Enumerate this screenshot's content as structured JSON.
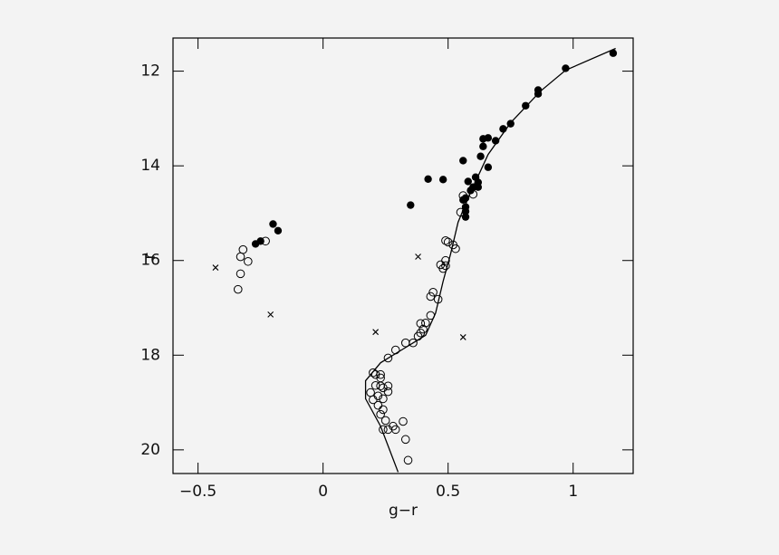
{
  "chart_data": {
    "type": "scatter",
    "x_label": "g−r",
    "y_label": "r",
    "xlim": [
      -0.6,
      1.24
    ],
    "ylim": [
      20.5,
      11.3
    ],
    "xticks": [
      {
        "value": -0.5,
        "label": "−0.5"
      },
      0,
      0.5,
      1
    ],
    "yticks": [
      12,
      14,
      16,
      18,
      20
    ],
    "series": [
      {
        "marker": "filled",
        "color": "#000000",
        "x": [
          1.16,
          0.97,
          0.86,
          0.86,
          0.81,
          0.75,
          0.72,
          0.69,
          0.66,
          0.64,
          0.64,
          0.63,
          0.66,
          0.56,
          0.61,
          0.58,
          0.62,
          0.6,
          0.62,
          0.59,
          0.42,
          0.48,
          0.57,
          0.56,
          0.57,
          0.57,
          0.57,
          0.35,
          -0.2,
          -0.18,
          -0.25,
          -0.27
        ],
        "values": [
          11.62,
          11.94,
          12.4,
          12.48,
          12.73,
          13.11,
          13.22,
          13.47,
          13.41,
          13.43,
          13.59,
          13.8,
          14.03,
          13.89,
          14.24,
          14.33,
          14.35,
          14.45,
          14.45,
          14.52,
          14.28,
          14.29,
          14.68,
          14.72,
          14.87,
          14.96,
          15.08,
          14.83,
          15.23,
          15.37,
          15.59,
          15.65
        ]
      },
      {
        "marker": "open",
        "color": "#000000",
        "x": [
          0.6,
          0.56,
          0.55,
          0.49,
          0.5,
          0.52,
          0.53,
          0.49,
          0.47,
          0.49,
          0.48,
          0.44,
          0.43,
          0.46,
          0.43,
          0.41,
          0.39,
          0.4,
          0.39,
          0.38,
          0.36,
          0.33,
          0.29,
          0.26,
          0.2,
          0.21,
          0.23,
          0.23,
          0.21,
          0.23,
          0.24,
          0.26,
          0.26,
          0.19,
          0.22,
          0.24,
          0.2,
          0.22,
          0.24,
          0.23,
          0.25,
          0.28,
          0.32,
          0.24,
          0.26,
          0.29,
          0.33,
          0.34,
          -0.23,
          -0.32,
          -0.33,
          -0.3,
          -0.33,
          -0.34
        ],
        "values": [
          14.6,
          14.63,
          14.98,
          15.58,
          15.61,
          15.67,
          15.75,
          16.0,
          16.09,
          16.11,
          16.17,
          16.67,
          16.76,
          16.82,
          17.16,
          17.32,
          17.33,
          17.45,
          17.53,
          17.6,
          17.74,
          17.74,
          17.89,
          18.06,
          18.37,
          18.41,
          18.41,
          18.48,
          18.64,
          18.65,
          18.69,
          18.65,
          18.77,
          18.79,
          18.86,
          18.92,
          18.94,
          19.06,
          19.15,
          19.25,
          19.38,
          19.5,
          19.4,
          19.57,
          19.57,
          19.57,
          19.78,
          20.22,
          15.59,
          15.77,
          15.92,
          16.02,
          16.28,
          16.61
        ]
      },
      {
        "marker": "cross",
        "color": "#000000",
        "x": [
          -0.43,
          -0.21,
          0.21,
          0.38,
          0.56
        ],
        "values": [
          16.15,
          17.14,
          17.51,
          15.92,
          17.62
        ]
      },
      {
        "marker": "line",
        "color": "#000000",
        "x": [
          1.17,
          0.97,
          0.87,
          0.75,
          0.66,
          0.59,
          0.54,
          0.51,
          0.48,
          0.45,
          0.41,
          0.32,
          0.23,
          0.17,
          0.17,
          0.23,
          0.3
        ],
        "values": [
          11.52,
          11.98,
          12.42,
          13.09,
          13.76,
          14.56,
          15.19,
          15.86,
          16.44,
          17.11,
          17.58,
          17.87,
          18.16,
          18.54,
          18.92,
          19.5,
          20.47
        ]
      }
    ]
  }
}
